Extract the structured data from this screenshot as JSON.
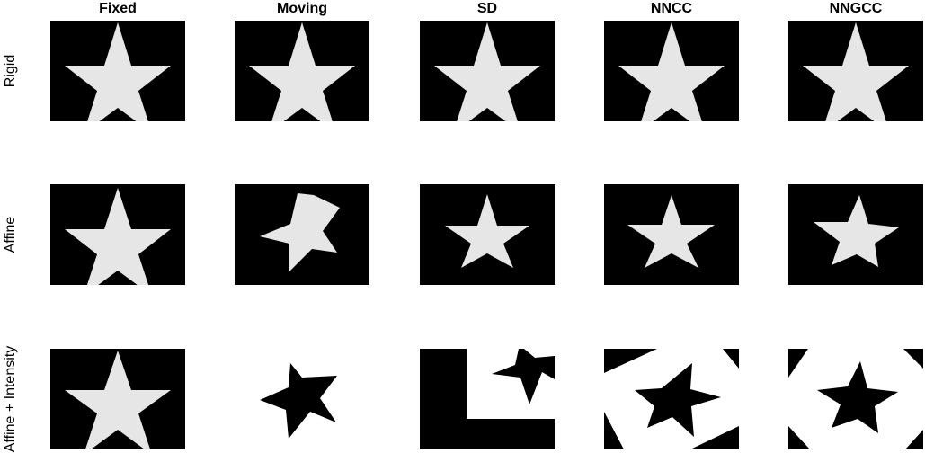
{
  "columns": [
    "Fixed",
    "Moving",
    "SD",
    "NNCC",
    "NNGCC"
  ],
  "rows": [
    "Rigid",
    "Affine",
    "Affine + Intensity"
  ],
  "colors": {
    "background": "#000000",
    "star": "#e6e6e6",
    "white": "#ffffff"
  }
}
